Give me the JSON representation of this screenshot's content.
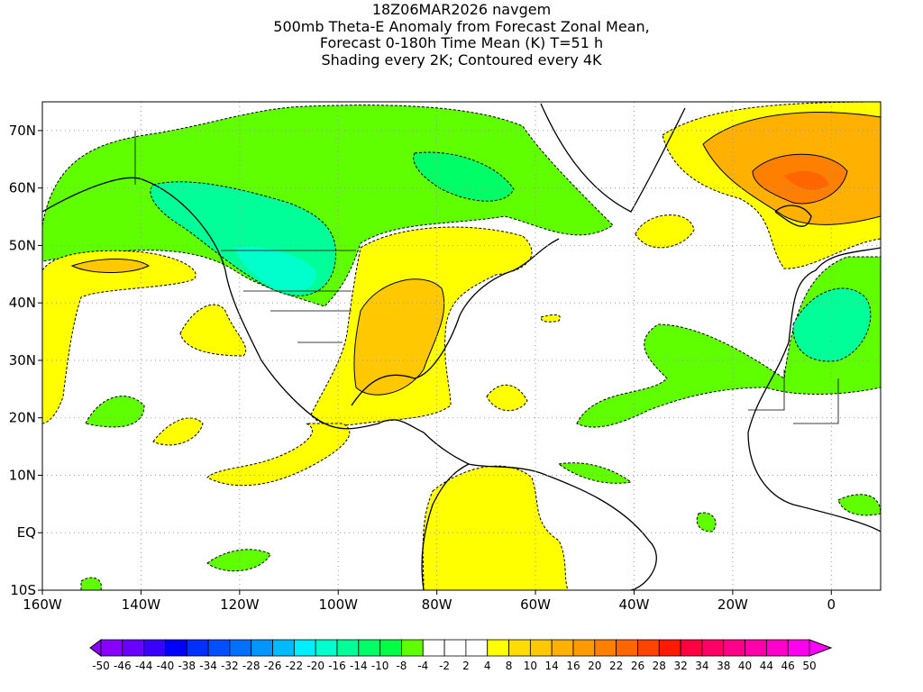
{
  "title": {
    "line1": "18Z06MAR2026 navgem",
    "line2": "500mb Theta-E Anomaly from Forecast Zonal Mean,",
    "line3": "Forecast 0-180h Time Mean (K) T=51 h",
    "line4": "Shading every 2K; Contoured every 4K"
  },
  "map": {
    "lat_labels": [
      "70N",
      "60N",
      "50N",
      "40N",
      "30N",
      "20N",
      "10N",
      "EQ",
      "10S"
    ],
    "lon_labels": [
      "160W",
      "140W",
      "120W",
      "100W",
      "80W",
      "60W",
      "40W",
      "20W",
      "0"
    ],
    "lon_range": [
      -160,
      10
    ],
    "lat_range": [
      -10,
      75
    ]
  },
  "colorbar": {
    "labels": [
      "-50",
      "-46",
      "-44",
      "-40",
      "-38",
      "-34",
      "-32",
      "-28",
      "-26",
      "-22",
      "-20",
      "-16",
      "-14",
      "-10",
      "-8",
      "-4",
      "-2",
      "2",
      "4",
      "8",
      "10",
      "14",
      "16",
      "20",
      "22",
      "26",
      "28",
      "32",
      "34",
      "38",
      "40",
      "44",
      "46",
      "50"
    ],
    "colors": [
      "#8a00ff",
      "#6a00ff",
      "#3a00ff",
      "#0000ff",
      "#0030ff",
      "#0050ff",
      "#0070ff",
      "#0095ff",
      "#00bbff",
      "#00eeff",
      "#00ffcc",
      "#00ff99",
      "#00ff66",
      "#00ff44",
      "#60ff00",
      "#ffffff",
      "#ffffff",
      "#ffffff",
      "#ffff00",
      "#ffdd00",
      "#ffc800",
      "#ffb000",
      "#ff9a00",
      "#ff8000",
      "#ff6600",
      "#ff4400",
      "#ff1a00",
      "#ff0040",
      "#ff0066",
      "#ff0088",
      "#ff00aa",
      "#ff00cc",
      "#ff00ee"
    ],
    "low_arrow": "#8a00ff",
    "high_arrow": "#ff00ff"
  }
}
